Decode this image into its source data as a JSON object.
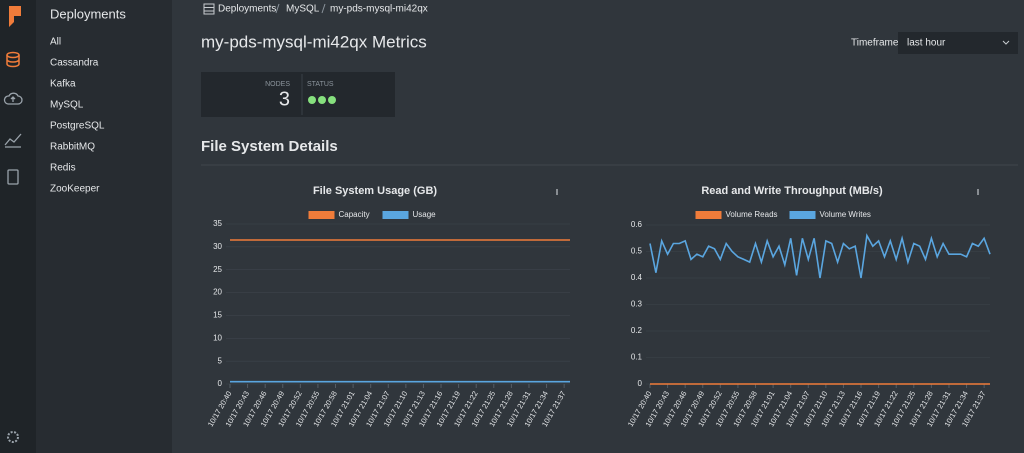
{
  "sidebar": {
    "title": "Deployments",
    "items": [
      "All",
      "Cassandra",
      "Kafka",
      "MySQL",
      "PostgreSQL",
      "RabbitMQ",
      "Redis",
      "ZooKeeper"
    ]
  },
  "breadcrumb": [
    "Deployments",
    "MySQL",
    "my-pds-mysql-mi42qx"
  ],
  "header": {
    "title": "my-pds-mysql-mi42qx Metrics",
    "timeframe_label": "Timeframe",
    "timeframe_value": "last hour"
  },
  "stats": {
    "nodes_label": "NODES",
    "nodes_value": 3,
    "status_label": "STATUS"
  },
  "section_title": "File System Details",
  "chart_data": [
    {
      "type": "line",
      "title": "File System Usage (GB)",
      "categories": [
        "10/17 20:40",
        null,
        null,
        "10/17 20:43",
        null,
        null,
        "10/17 20:46",
        null,
        null,
        "10/17 20:49",
        null,
        null,
        "10/17 20:52",
        null,
        null,
        "10/17 20:55",
        null,
        null,
        "10/17 20:58",
        null,
        null,
        "10/17 21:01",
        null,
        null,
        "10/17 21:04",
        null,
        null,
        "10/17 21:07",
        null,
        null,
        "10/17 21:10",
        null,
        null,
        "10/17 21:13",
        null,
        null,
        "10/17 21:16",
        null,
        null,
        "10/17 21:19",
        null,
        null,
        "10/17 21:22",
        null,
        null,
        "10/17 21:25",
        null,
        null,
        "10/17 21:28",
        null,
        null,
        "10/17 21:31",
        null,
        null,
        "10/17 21:34",
        null,
        null,
        "10/17 21:37",
        null
      ],
      "series": [
        {
          "name": "Capacity",
          "color": "#f07c3a",
          "values": [
            31.5,
            31.5,
            31.5,
            31.5,
            31.5,
            31.5,
            31.5,
            31.5,
            31.5,
            31.5,
            31.5,
            31.5,
            31.5,
            31.5,
            31.5,
            31.5,
            31.5,
            31.5,
            31.5,
            31.5,
            31.5,
            31.5,
            31.5,
            31.5,
            31.5,
            31.5,
            31.5,
            31.5,
            31.5,
            31.5,
            31.5,
            31.5,
            31.5,
            31.5,
            31.5,
            31.5,
            31.5,
            31.5,
            31.5,
            31.5,
            31.5,
            31.5,
            31.5,
            31.5,
            31.5,
            31.5,
            31.5,
            31.5,
            31.5,
            31.5,
            31.5,
            31.5,
            31.5,
            31.5,
            31.5,
            31.5,
            31.5,
            31.5,
            31.5
          ]
        },
        {
          "name": "Usage",
          "color": "#5aa6e0",
          "values": [
            0.5,
            0.5,
            0.5,
            0.5,
            0.5,
            0.5,
            0.5,
            0.5,
            0.5,
            0.5,
            0.5,
            0.5,
            0.5,
            0.5,
            0.5,
            0.5,
            0.5,
            0.5,
            0.5,
            0.5,
            0.5,
            0.5,
            0.5,
            0.5,
            0.5,
            0.5,
            0.5,
            0.5,
            0.5,
            0.5,
            0.5,
            0.5,
            0.5,
            0.5,
            0.5,
            0.5,
            0.5,
            0.5,
            0.5,
            0.5,
            0.5,
            0.5,
            0.5,
            0.5,
            0.5,
            0.5,
            0.5,
            0.5,
            0.5,
            0.5,
            0.5,
            0.5,
            0.5,
            0.5,
            0.5,
            0.5,
            0.5,
            0.5,
            0.5
          ]
        }
      ],
      "ylim": [
        0,
        35
      ],
      "yticks": [
        0,
        5,
        10,
        15,
        20,
        25,
        30,
        35
      ]
    },
    {
      "type": "line",
      "title": "Read and Write Throughput (MB/s)",
      "categories": [
        "10/17 20:40",
        null,
        null,
        "10/17 20:43",
        null,
        null,
        "10/17 20:46",
        null,
        null,
        "10/17 20:49",
        null,
        null,
        "10/17 20:52",
        null,
        null,
        "10/17 20:55",
        null,
        null,
        "10/17 20:58",
        null,
        null,
        "10/17 21:01",
        null,
        null,
        "10/17 21:04",
        null,
        null,
        "10/17 21:07",
        null,
        null,
        "10/17 21:10",
        null,
        null,
        "10/17 21:13",
        null,
        null,
        "10/17 21:16",
        null,
        null,
        "10/17 21:19",
        null,
        null,
        "10/17 21:22",
        null,
        null,
        "10/17 21:25",
        null,
        null,
        "10/17 21:28",
        null,
        null,
        "10/17 21:31",
        null,
        null,
        "10/17 21:34",
        null,
        null,
        "10/17 21:37",
        null
      ],
      "series": [
        {
          "name": "Volume Reads",
          "color": "#f07c3a",
          "values": [
            0,
            0,
            0,
            0,
            0,
            0,
            0,
            0,
            0,
            0,
            0,
            0,
            0,
            0,
            0,
            0,
            0,
            0,
            0,
            0,
            0,
            0,
            0,
            0,
            0,
            0,
            0,
            0,
            0,
            0,
            0,
            0,
            0,
            0,
            0,
            0,
            0,
            0,
            0,
            0,
            0,
            0,
            0,
            0,
            0,
            0,
            0,
            0,
            0,
            0,
            0,
            0,
            0,
            0,
            0,
            0,
            0,
            0,
            0
          ]
        },
        {
          "name": "Volume Writes",
          "color": "#5aa6e0",
          "values": [
            0.53,
            0.42,
            0.54,
            0.49,
            0.53,
            0.53,
            0.54,
            0.47,
            0.49,
            0.48,
            0.52,
            0.51,
            0.47,
            0.53,
            0.5,
            0.48,
            0.47,
            0.46,
            0.53,
            0.46,
            0.54,
            0.48,
            0.52,
            0.45,
            0.55,
            0.41,
            0.55,
            0.47,
            0.55,
            0.4,
            0.54,
            0.53,
            0.46,
            0.53,
            0.51,
            0.52,
            0.4,
            0.56,
            0.52,
            0.54,
            0.48,
            0.54,
            0.47,
            0.55,
            0.46,
            0.53,
            0.52,
            0.47,
            0.55,
            0.48,
            0.53,
            0.49,
            0.49,
            0.49,
            0.48,
            0.53,
            0.52,
            0.55,
            0.49
          ]
        }
      ],
      "ylim": [
        0,
        0.6
      ],
      "yticks": [
        0,
        0.1,
        0.2,
        0.3,
        0.4,
        0.5,
        0.6
      ]
    }
  ]
}
